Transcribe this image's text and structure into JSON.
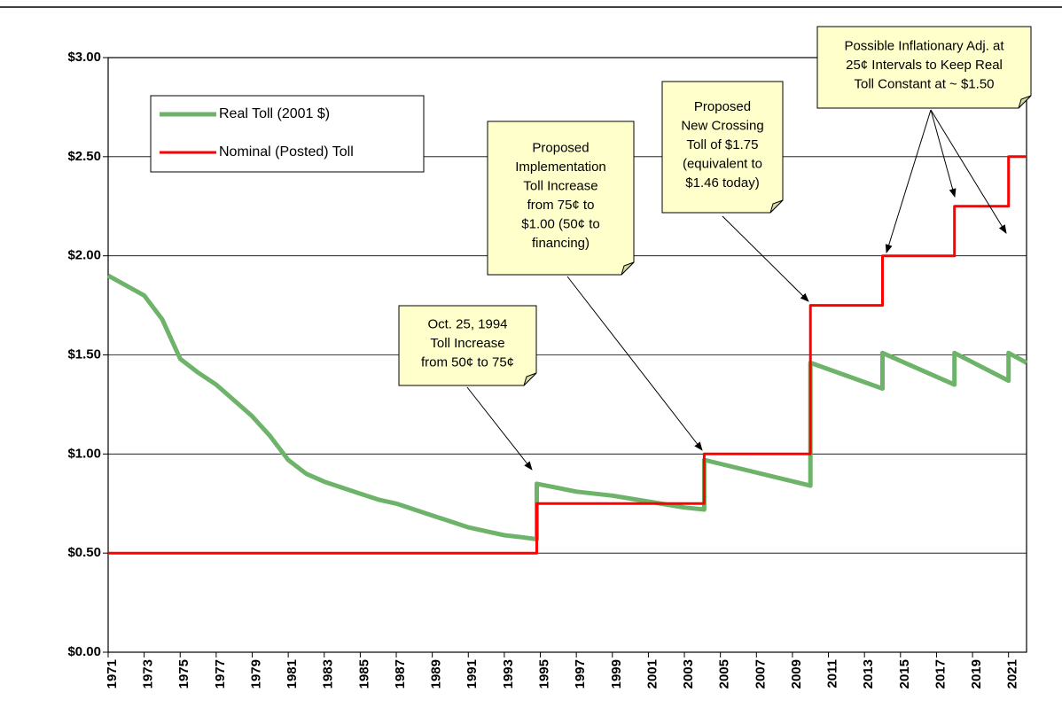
{
  "chart_data": {
    "type": "line",
    "xlim": [
      1971,
      2022
    ],
    "xticks": [
      1971,
      1973,
      1975,
      1977,
      1979,
      1981,
      1983,
      1985,
      1987,
      1989,
      1991,
      1993,
      1995,
      1997,
      1999,
      2001,
      2003,
      2005,
      2007,
      2009,
      2011,
      2013,
      2015,
      2017,
      2019,
      2021
    ],
    "ylim": [
      0,
      3
    ],
    "yticks": [
      {
        "value": 0,
        "label": "$0.00"
      },
      {
        "value": 0.5,
        "label": "$0.50"
      },
      {
        "value": 1,
        "label": "$1.00"
      },
      {
        "value": 1.5,
        "label": "$1.50"
      },
      {
        "value": 2,
        "label": "$2.00"
      },
      {
        "value": 2.5,
        "label": "$2.50"
      },
      {
        "value": 3,
        "label": "$3.00"
      }
    ],
    "grid": true,
    "legend": "upper left",
    "series": [
      {
        "name": "Real Toll (2001 $)",
        "color": "#6db36a",
        "x": [
          1971,
          1972,
          1973,
          1974,
          1975,
          1976,
          1977,
          1978,
          1979,
          1980,
          1981,
          1982,
          1983,
          1984,
          1985,
          1986,
          1987,
          1988,
          1989,
          1990,
          1991,
          1992,
          1993,
          1994,
          1994.8,
          1994.8,
          1997,
          1999,
          2001,
          2003,
          2004.1,
          2004.1,
          2010,
          2010,
          2014,
          2014,
          2018,
          2018,
          2021,
          2021,
          2022
        ],
        "values": [
          1.9,
          1.85,
          1.8,
          1.68,
          1.48,
          1.41,
          1.35,
          1.27,
          1.19,
          1.09,
          0.97,
          0.9,
          0.86,
          0.83,
          0.8,
          0.77,
          0.75,
          0.72,
          0.69,
          0.66,
          0.63,
          0.61,
          0.59,
          0.58,
          0.57,
          0.85,
          0.81,
          0.79,
          0.76,
          0.73,
          0.72,
          0.97,
          0.84,
          1.46,
          1.33,
          1.51,
          1.35,
          1.51,
          1.37,
          1.51,
          1.46
        ]
      },
      {
        "name": "Nominal (Posted) Toll",
        "color": "#ff0000",
        "x": [
          1971,
          1994.8,
          1994.8,
          2004.1,
          2004.1,
          2010,
          2010,
          2014,
          2014,
          2018,
          2018,
          2021,
          2021,
          2022
        ],
        "values": [
          0.5,
          0.5,
          0.75,
          0.75,
          1,
          1,
          1.75,
          1.75,
          2,
          2,
          2.25,
          2.25,
          2.5,
          2.5
        ]
      }
    ],
    "annotations": [
      [
        "Oct. 25, 1994",
        "Toll Increase",
        "from 50¢ to 75¢"
      ],
      [
        "Proposed",
        "Implementation",
        "Toll Increase",
        "from 75¢ to",
        "$1.00 (50¢ to",
        "financing)"
      ],
      [
        "Proposed",
        "New Crossing",
        "Toll of $1.75",
        "(equivalent to",
        "$1.46 today)"
      ],
      [
        "Possible Inflationary Adj. at",
        "25¢ Intervals to Keep Real",
        "Toll Constant at ~ $1.50"
      ]
    ]
  }
}
